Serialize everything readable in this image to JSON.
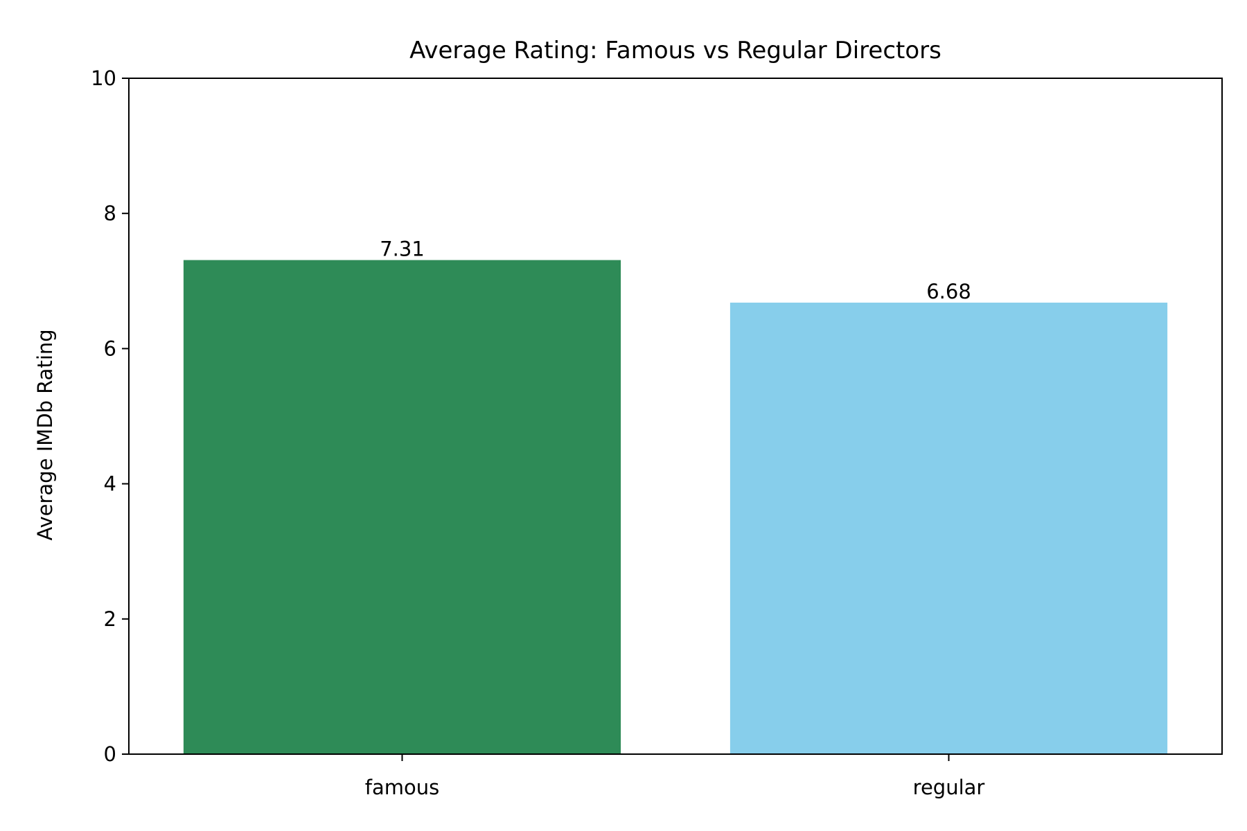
{
  "chart_data": {
    "type": "bar",
    "title": "Average Rating: Famous vs Regular Directors",
    "xlabel": "",
    "ylabel": "Average IMDb Rating",
    "categories": [
      "famous",
      "regular"
    ],
    "values": [
      7.31,
      6.68
    ],
    "value_labels": [
      "7.31",
      "6.68"
    ],
    "colors": [
      "#2e8b57",
      "#87ceeb"
    ],
    "ylim": [
      0,
      10
    ],
    "yticks": [
      0,
      2,
      4,
      6,
      8,
      10
    ],
    "ytick_labels": [
      "0",
      "2",
      "4",
      "6",
      "8",
      "10"
    ],
    "grid": false,
    "legend": "none"
  }
}
